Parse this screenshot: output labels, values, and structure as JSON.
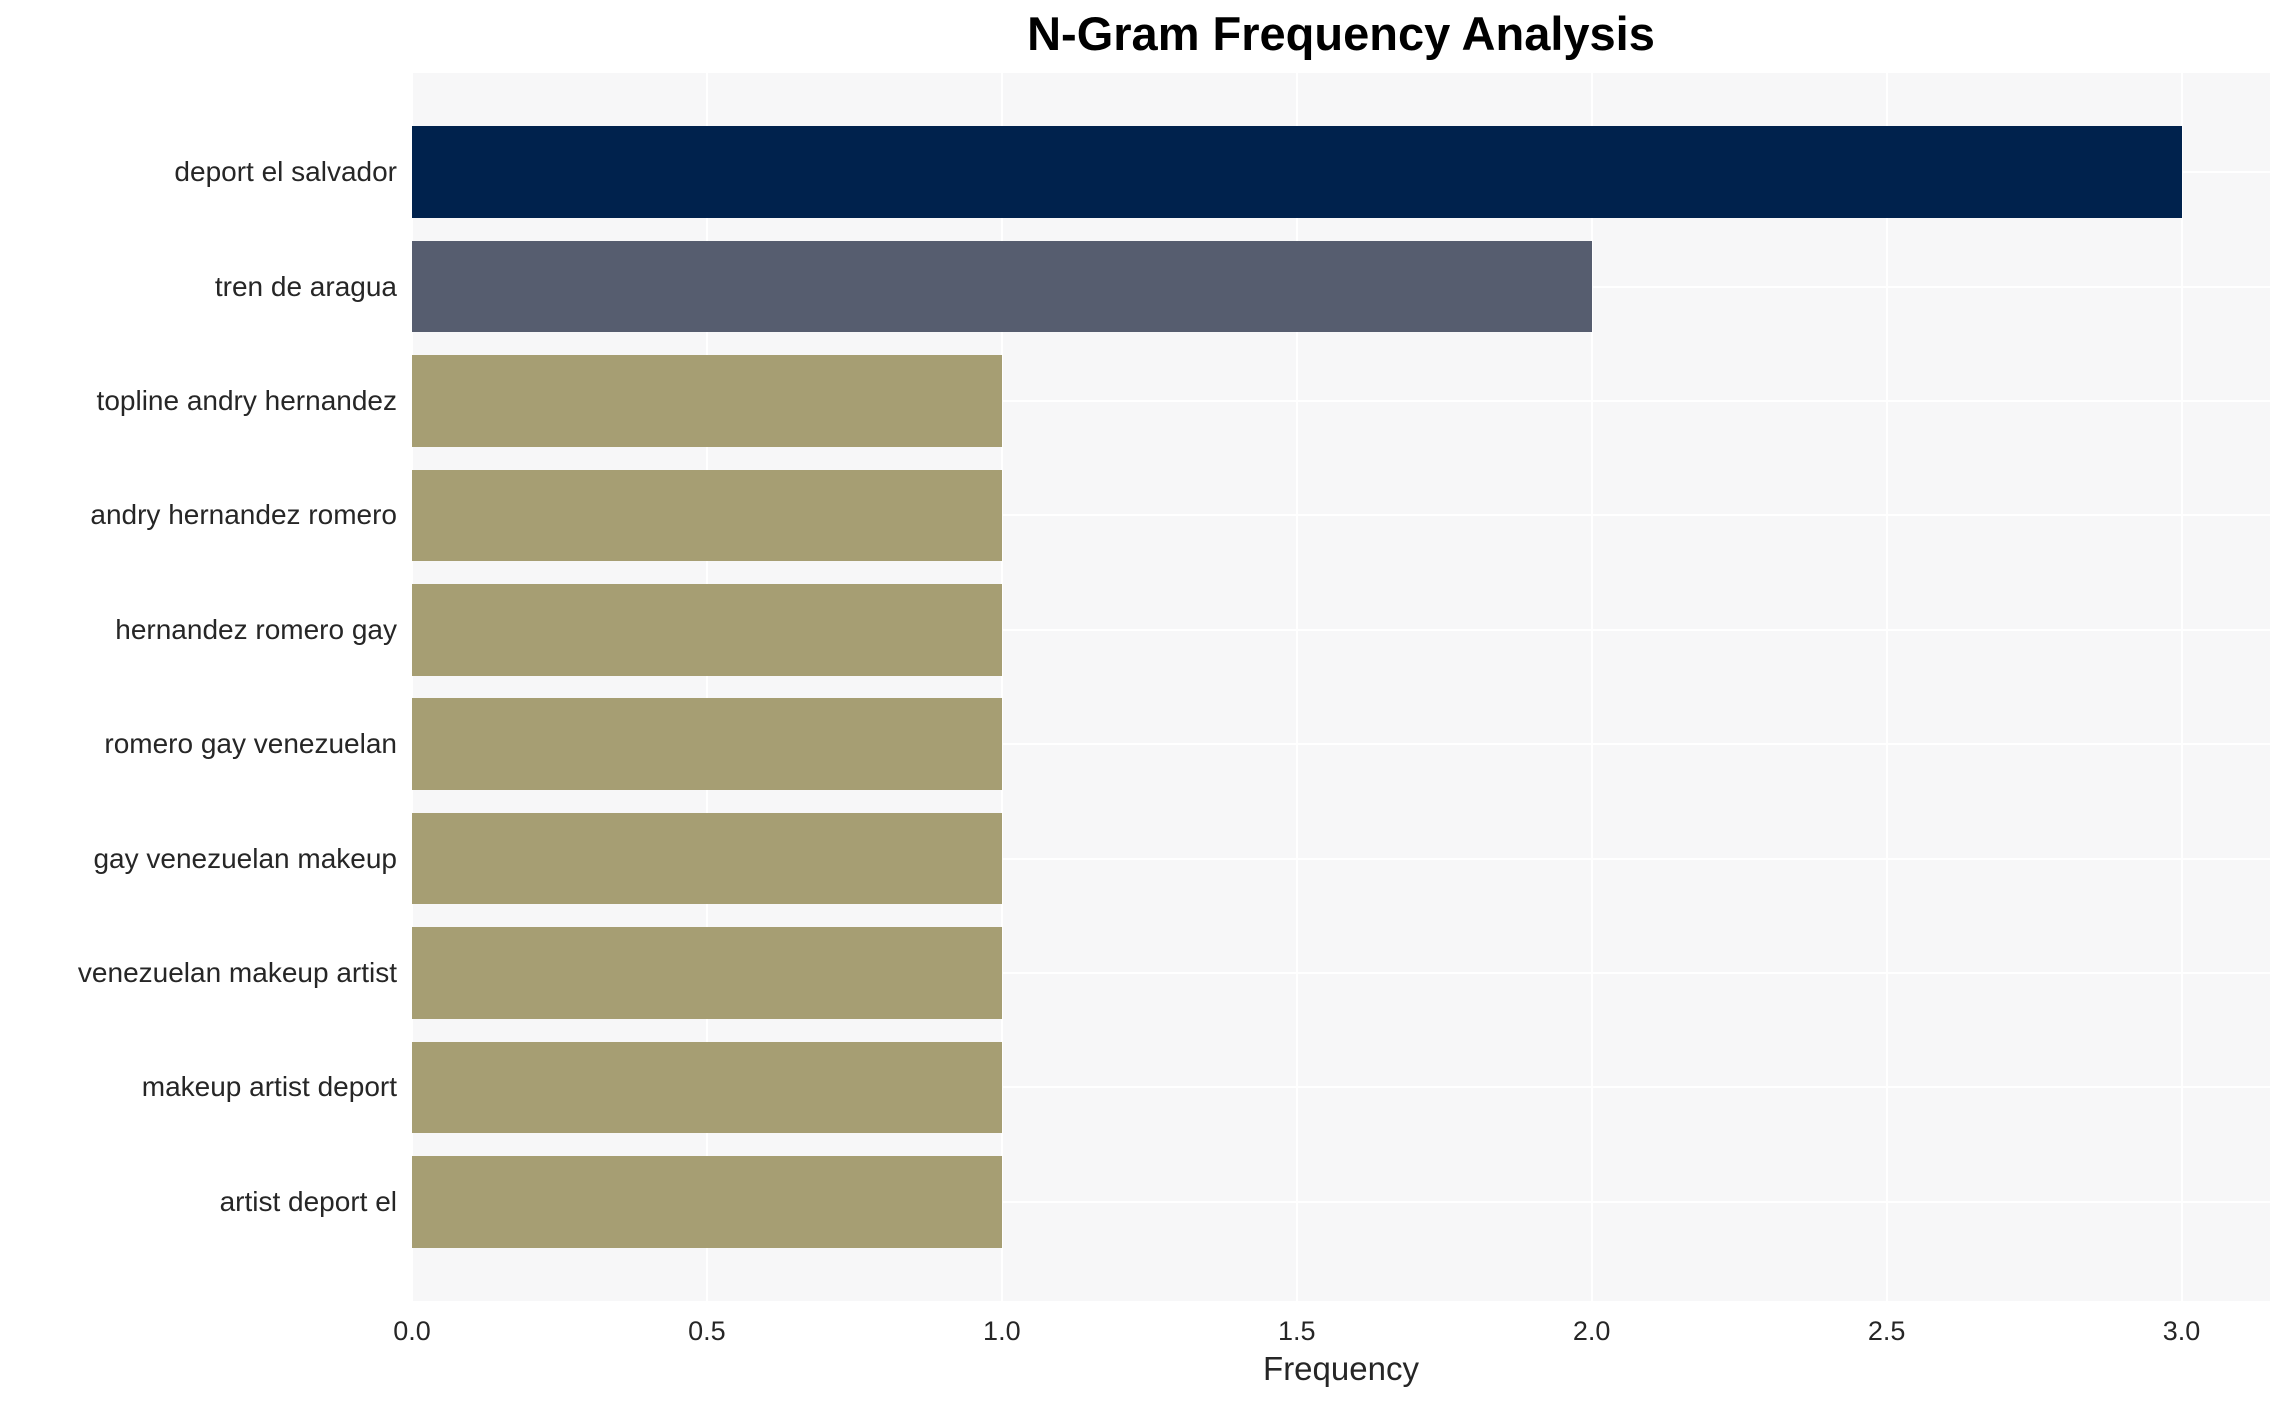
{
  "chart_data": {
    "type": "bar",
    "orientation": "horizontal",
    "title": "N-Gram Frequency Analysis",
    "xlabel": "Frequency",
    "ylabel": "",
    "categories": [
      "deport el salvador",
      "tren de aragua",
      "topline andry hernandez",
      "andry hernandez romero",
      "hernandez romero gay",
      "romero gay venezuelan",
      "gay venezuelan makeup",
      "venezuelan makeup artist",
      "makeup artist deport",
      "artist deport el"
    ],
    "values": [
      3,
      2,
      1,
      1,
      1,
      1,
      1,
      1,
      1,
      1
    ],
    "bar_colors": [
      "#00224d",
      "#565d6f",
      "#a69e73",
      "#a69e73",
      "#a69e73",
      "#a69e73",
      "#a69e73",
      "#a69e73",
      "#a69e73",
      "#a69e73"
    ],
    "xlim": [
      0,
      3.15
    ],
    "xtick_values": [
      0,
      0.5,
      1,
      1.5,
      2,
      2.5,
      3
    ],
    "xtick_labels": [
      "0.0",
      "0.5",
      "1.0",
      "1.5",
      "2.0",
      "2.5",
      "3.0"
    ],
    "grid": true,
    "legend": false,
    "plot_background": "#f7f7f8",
    "grid_color": "#ffffff",
    "text_color": "#262626",
    "title_color": "#000000"
  }
}
